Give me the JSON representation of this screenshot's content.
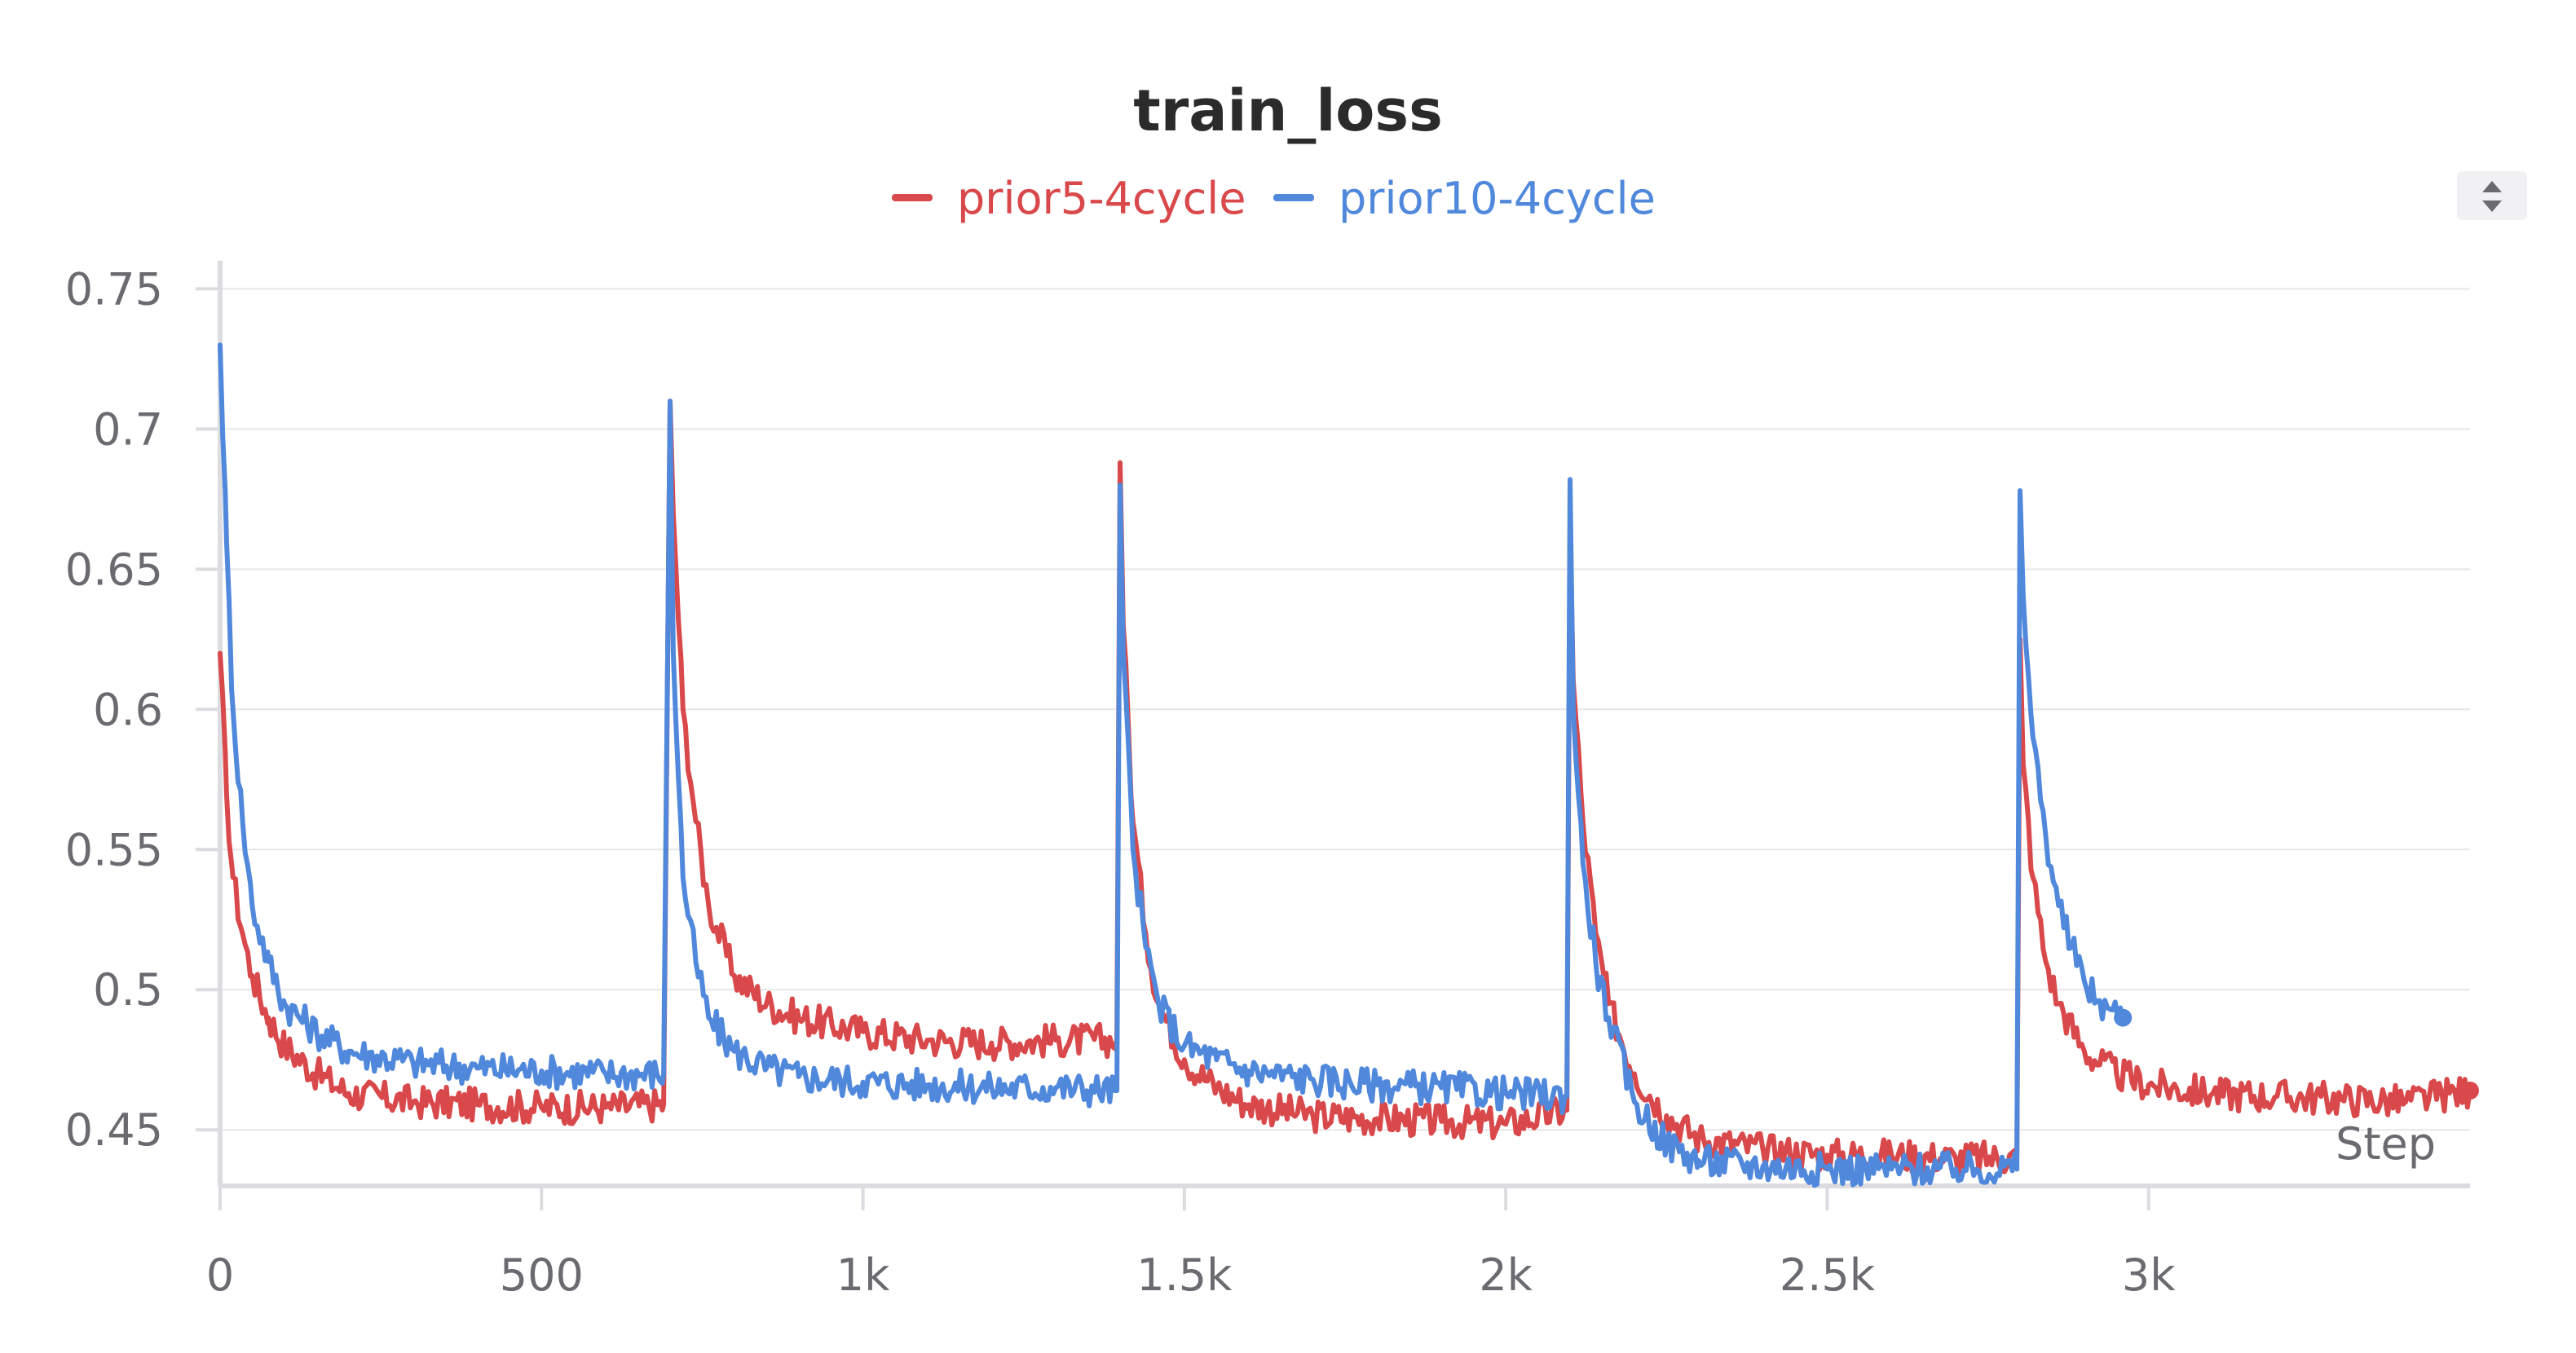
{
  "chart_data": {
    "type": "line",
    "title": "train_loss",
    "xlabel": "Step",
    "ylabel": "",
    "xlim": [
      0,
      3500
    ],
    "ylim": [
      0.43,
      0.76
    ],
    "x_ticks": [
      0,
      500,
      1000,
      1500,
      2000,
      2500,
      3000
    ],
    "x_tick_labels": [
      "0",
      "500",
      "1k",
      "1.5k",
      "2k",
      "2.5k",
      "3k"
    ],
    "y_ticks": [
      0.45,
      0.5,
      0.55,
      0.6,
      0.65,
      0.7,
      0.75
    ],
    "y_tick_labels": [
      "0.45",
      "0.5",
      "0.55",
      "0.6",
      "0.65",
      "0.7",
      "0.75"
    ],
    "grid": true,
    "legend_position": "top-center",
    "series": [
      {
        "name": "prior5-4cycle",
        "color": "#d9484a",
        "x": [
          0,
          10,
          20,
          35,
          50,
          75,
          100,
          150,
          200,
          300,
          400,
          500,
          600,
          690,
          700,
          705,
          720,
          740,
          760,
          800,
          850,
          900,
          1000,
          1100,
          1200,
          1300,
          1395,
          1400,
          1405,
          1420,
          1440,
          1460,
          1500,
          1550,
          1600,
          1700,
          1800,
          1900,
          2000,
          2095,
          2100,
          2105,
          2120,
          2140,
          2160,
          2200,
          2250,
          2300,
          2400,
          2500,
          2600,
          2700,
          2795,
          2800,
          2805,
          2820,
          2840,
          2860,
          2900,
          2950,
          3000,
          3100,
          3200,
          3300,
          3400,
          3500
        ],
        "y": [
          0.62,
          0.57,
          0.54,
          0.52,
          0.505,
          0.49,
          0.48,
          0.47,
          0.463,
          0.46,
          0.459,
          0.458,
          0.458,
          0.459,
          0.71,
          0.67,
          0.6,
          0.56,
          0.53,
          0.505,
          0.495,
          0.49,
          0.485,
          0.482,
          0.481,
          0.482,
          0.482,
          0.688,
          0.63,
          0.56,
          0.52,
          0.495,
          0.475,
          0.465,
          0.459,
          0.455,
          0.454,
          0.453,
          0.452,
          0.457,
          0.665,
          0.61,
          0.56,
          0.52,
          0.495,
          0.47,
          0.455,
          0.447,
          0.443,
          0.441,
          0.441,
          0.44,
          0.44,
          0.625,
          0.58,
          0.54,
          0.51,
          0.495,
          0.478,
          0.47,
          0.466,
          0.463,
          0.462,
          0.461,
          0.46,
          0.464
        ]
      },
      {
        "name": "prior10-4cycle",
        "color": "#5088dc",
        "x": [
          0,
          10,
          20,
          35,
          50,
          75,
          100,
          150,
          200,
          300,
          400,
          500,
          600,
          690,
          700,
          705,
          720,
          740,
          760,
          800,
          850,
          900,
          1000,
          1100,
          1200,
          1300,
          1395,
          1400,
          1405,
          1420,
          1440,
          1460,
          1500,
          1550,
          1600,
          1700,
          1800,
          1900,
          2000,
          2095,
          2100,
          2105,
          2120,
          2140,
          2160,
          2200,
          2250,
          2300,
          2400,
          2500,
          2600,
          2700,
          2795,
          2800,
          2805,
          2820,
          2840,
          2860,
          2880,
          2900,
          2920,
          2940,
          2960
        ],
        "y": [
          0.73,
          0.66,
          0.6,
          0.56,
          0.53,
          0.51,
          0.495,
          0.485,
          0.478,
          0.474,
          0.472,
          0.471,
          0.47,
          0.47,
          0.71,
          0.62,
          0.54,
          0.51,
          0.49,
          0.478,
          0.472,
          0.469,
          0.467,
          0.466,
          0.465,
          0.465,
          0.464,
          0.68,
          0.62,
          0.55,
          0.515,
          0.495,
          0.48,
          0.475,
          0.471,
          0.468,
          0.466,
          0.465,
          0.463,
          0.462,
          0.682,
          0.6,
          0.545,
          0.51,
          0.49,
          0.46,
          0.445,
          0.439,
          0.437,
          0.436,
          0.436,
          0.436,
          0.436,
          0.678,
          0.64,
          0.59,
          0.555,
          0.53,
          0.515,
          0.503,
          0.496,
          0.493,
          0.49
        ]
      }
    ]
  },
  "sort_icon": "sort-up-down-icon"
}
